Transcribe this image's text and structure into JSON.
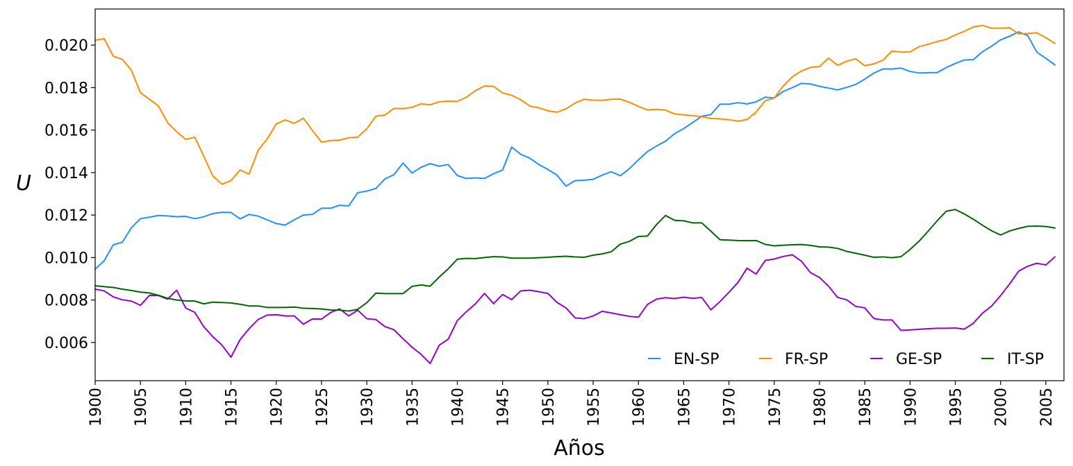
{
  "chart_data": {
    "type": "line",
    "xlabel": "Años",
    "ylabel": "U",
    "xlim": [
      1900,
      2007
    ],
    "ylim": [
      0.0042,
      0.0217
    ],
    "x_ticks": [
      1900,
      1905,
      1910,
      1915,
      1920,
      1925,
      1930,
      1935,
      1940,
      1945,
      1950,
      1955,
      1960,
      1965,
      1970,
      1975,
      1980,
      1985,
      1990,
      1995,
      2000,
      2005
    ],
    "x_tick_labels": [
      "1900",
      "1905",
      "1910",
      "1915",
      "1920",
      "1925",
      "1930",
      "1935",
      "1940",
      "1945",
      "1950",
      "1955",
      "1960",
      "1965",
      "1970",
      "1975",
      "1980",
      "1985",
      "1990",
      "1995",
      "2000",
      "2005"
    ],
    "y_ticks": [
      0.006,
      0.008,
      0.01,
      0.012,
      0.014,
      0.016,
      0.018,
      0.02
    ],
    "y_tick_labels": [
      "0.006",
      "0.008",
      "0.010",
      "0.012",
      "0.014",
      "0.016",
      "0.018",
      "0.020"
    ],
    "legend_position": "bottom-right",
    "grid": false,
    "x": [
      1900,
      1901,
      1902,
      1903,
      1904,
      1905,
      1906,
      1907,
      1908,
      1909,
      1910,
      1911,
      1912,
      1913,
      1914,
      1915,
      1916,
      1917,
      1918,
      1919,
      1920,
      1921,
      1922,
      1923,
      1924,
      1925,
      1926,
      1927,
      1928,
      1929,
      1930,
      1931,
      1932,
      1933,
      1934,
      1935,
      1936,
      1937,
      1938,
      1939,
      1940,
      1941,
      1942,
      1943,
      1944,
      1945,
      1946,
      1947,
      1948,
      1949,
      1950,
      1951,
      1952,
      1953,
      1954,
      1955,
      1956,
      1957,
      1958,
      1959,
      1960,
      1961,
      1962,
      1963,
      1964,
      1965,
      1966,
      1967,
      1968,
      1969,
      1970,
      1971,
      1972,
      1973,
      1974,
      1975,
      1976,
      1977,
      1978,
      1979,
      1980,
      1981,
      1982,
      1983,
      1984,
      1985,
      1986,
      1987,
      1988,
      1989,
      1990,
      1991,
      1992,
      1993,
      1994,
      1995,
      1996,
      1997,
      1998,
      1999,
      2000,
      2001,
      2002,
      2003,
      2004,
      2005,
      2006
    ],
    "series": [
      {
        "name": "EN-SP",
        "color": "#1e90ff",
        "values": [
          0.00945,
          0.00985,
          0.0106,
          0.01072,
          0.0114,
          0.01183,
          0.0119,
          0.01198,
          0.01196,
          0.01192,
          0.01194,
          0.01183,
          0.01192,
          0.01207,
          0.01213,
          0.01212,
          0.01182,
          0.01203,
          0.01195,
          0.01177,
          0.0116,
          0.01153,
          0.01178,
          0.012,
          0.01203,
          0.01232,
          0.01232,
          0.01246,
          0.01243,
          0.01305,
          0.01313,
          0.01325,
          0.0137,
          0.0139,
          0.01445,
          0.01398,
          0.01425,
          0.01442,
          0.0143,
          0.01438,
          0.01386,
          0.01372,
          0.01375,
          0.01372,
          0.01395,
          0.01412,
          0.0152,
          0.01486,
          0.01468,
          0.01438,
          0.01415,
          0.01388,
          0.01336,
          0.01362,
          0.01364,
          0.01368,
          0.01388,
          0.01404,
          0.01385,
          0.01418,
          0.0146,
          0.01499,
          0.01525,
          0.01548,
          0.01583,
          0.01607,
          0.01636,
          0.01665,
          0.01673,
          0.01722,
          0.01722,
          0.01729,
          0.01723,
          0.01733,
          0.01755,
          0.01751,
          0.01782,
          0.018,
          0.0182,
          0.01817,
          0.01806,
          0.01798,
          0.01789,
          0.01801,
          0.01815,
          0.0184,
          0.01868,
          0.01888,
          0.01887,
          0.01892,
          0.01876,
          0.01869,
          0.0187,
          0.01871,
          0.01894,
          0.01914,
          0.0193,
          0.01932,
          0.01969,
          0.01995,
          0.02025,
          0.02042,
          0.02062,
          0.02045,
          0.01967,
          0.01938,
          0.01907
        ]
      },
      {
        "name": "FR-SP",
        "color": "#ff8c00",
        "values": [
          0.02023,
          0.0203,
          0.01948,
          0.01933,
          0.01882,
          0.01776,
          0.01745,
          0.01713,
          0.01635,
          0.01593,
          0.01556,
          0.01567,
          0.01477,
          0.01384,
          0.01345,
          0.01362,
          0.01412,
          0.01393,
          0.01505,
          0.01558,
          0.01629,
          0.01648,
          0.01632,
          0.01656,
          0.01598,
          0.01543,
          0.01551,
          0.01553,
          0.01564,
          0.01567,
          0.01606,
          0.01665,
          0.01671,
          0.01702,
          0.01701,
          0.01707,
          0.01724,
          0.01719,
          0.01733,
          0.01736,
          0.01735,
          0.01755,
          0.01786,
          0.01808,
          0.01806,
          0.01775,
          0.01764,
          0.01743,
          0.01713,
          0.01705,
          0.01691,
          0.01684,
          0.017,
          0.01727,
          0.01745,
          0.01741,
          0.0174,
          0.01745,
          0.01746,
          0.01731,
          0.01712,
          0.01695,
          0.01698,
          0.01694,
          0.01676,
          0.01672,
          0.01668,
          0.01663,
          0.01655,
          0.01653,
          0.01649,
          0.01642,
          0.0165,
          0.01685,
          0.01738,
          0.01751,
          0.01808,
          0.01851,
          0.01878,
          0.01895,
          0.019,
          0.01939,
          0.01905,
          0.01924,
          0.01936,
          0.01903,
          0.01912,
          0.01929,
          0.01972,
          0.01967,
          0.01968,
          0.01993,
          0.02004,
          0.02017,
          0.02027,
          0.02048,
          0.02065,
          0.02086,
          0.02093,
          0.0208,
          0.0208,
          0.02082,
          0.02053,
          0.02055,
          0.02058,
          0.02035,
          0.02008
        ]
      },
      {
        "name": "GE-SP",
        "color": "#9400d3",
        "values": [
          0.00851,
          0.00843,
          0.00815,
          0.00801,
          0.00795,
          0.00775,
          0.00822,
          0.00821,
          0.00804,
          0.00846,
          0.00762,
          0.00742,
          0.00674,
          0.00627,
          0.00588,
          0.00531,
          0.00613,
          0.00665,
          0.00708,
          0.00729,
          0.00731,
          0.00725,
          0.00725,
          0.00686,
          0.00711,
          0.0071,
          0.00741,
          0.00758,
          0.00725,
          0.00752,
          0.00712,
          0.00708,
          0.00675,
          0.0066,
          0.00618,
          0.00578,
          0.00544,
          0.00501,
          0.00587,
          0.00616,
          0.00703,
          0.00745,
          0.00782,
          0.00831,
          0.00783,
          0.00826,
          0.00802,
          0.00843,
          0.00846,
          0.00839,
          0.00831,
          0.00789,
          0.00763,
          0.00716,
          0.00712,
          0.00725,
          0.00747,
          0.00739,
          0.00731,
          0.00723,
          0.00719,
          0.00779,
          0.00804,
          0.00811,
          0.00807,
          0.00813,
          0.00808,
          0.00812,
          0.00754,
          0.00792,
          0.00836,
          0.00883,
          0.0095,
          0.00922,
          0.00986,
          0.00993,
          0.01005,
          0.01013,
          0.00983,
          0.00929,
          0.00906,
          0.00865,
          0.00812,
          0.00801,
          0.0077,
          0.00763,
          0.00713,
          0.00706,
          0.00706,
          0.00657,
          0.00659,
          0.00662,
          0.00665,
          0.00667,
          0.00667,
          0.00668,
          0.00663,
          0.00691,
          0.00738,
          0.00771,
          0.00821,
          0.00876,
          0.00936,
          0.00959,
          0.00973,
          0.00965,
          0.01003
        ]
      },
      {
        "name": "IT-SP",
        "color": "#006400",
        "values": [
          0.00867,
          0.00863,
          0.00859,
          0.00851,
          0.00845,
          0.00837,
          0.00833,
          0.00822,
          0.00808,
          0.008,
          0.00796,
          0.00795,
          0.00782,
          0.0079,
          0.00788,
          0.00786,
          0.0078,
          0.00772,
          0.00772,
          0.00765,
          0.00765,
          0.00765,
          0.00767,
          0.00761,
          0.0076,
          0.00758,
          0.00753,
          0.00752,
          0.00748,
          0.00756,
          0.00787,
          0.00832,
          0.0083,
          0.0083,
          0.0083,
          0.00864,
          0.00871,
          0.00865,
          0.00908,
          0.00947,
          0.00992,
          0.00996,
          0.00995,
          0.01,
          0.01004,
          0.01003,
          0.00997,
          0.00997,
          0.00997,
          0.00999,
          0.01001,
          0.01004,
          0.01006,
          0.01003,
          0.01001,
          0.01011,
          0.01017,
          0.01027,
          0.01063,
          0.01076,
          0.01099,
          0.01101,
          0.01155,
          0.01198,
          0.01175,
          0.01173,
          0.01163,
          0.01163,
          0.01124,
          0.01084,
          0.01082,
          0.0108,
          0.01079,
          0.0108,
          0.01062,
          0.01055,
          0.01058,
          0.0106,
          0.01061,
          0.01057,
          0.0105,
          0.01049,
          0.01043,
          0.01029,
          0.0102,
          0.01011,
          0.01001,
          0.01003,
          0.00999,
          0.01004,
          0.01038,
          0.01077,
          0.01124,
          0.01173,
          0.01218,
          0.01226,
          0.01205,
          0.0118,
          0.01152,
          0.01126,
          0.01106,
          0.01125,
          0.01137,
          0.01147,
          0.01148,
          0.01146,
          0.01139
        ]
      }
    ]
  }
}
